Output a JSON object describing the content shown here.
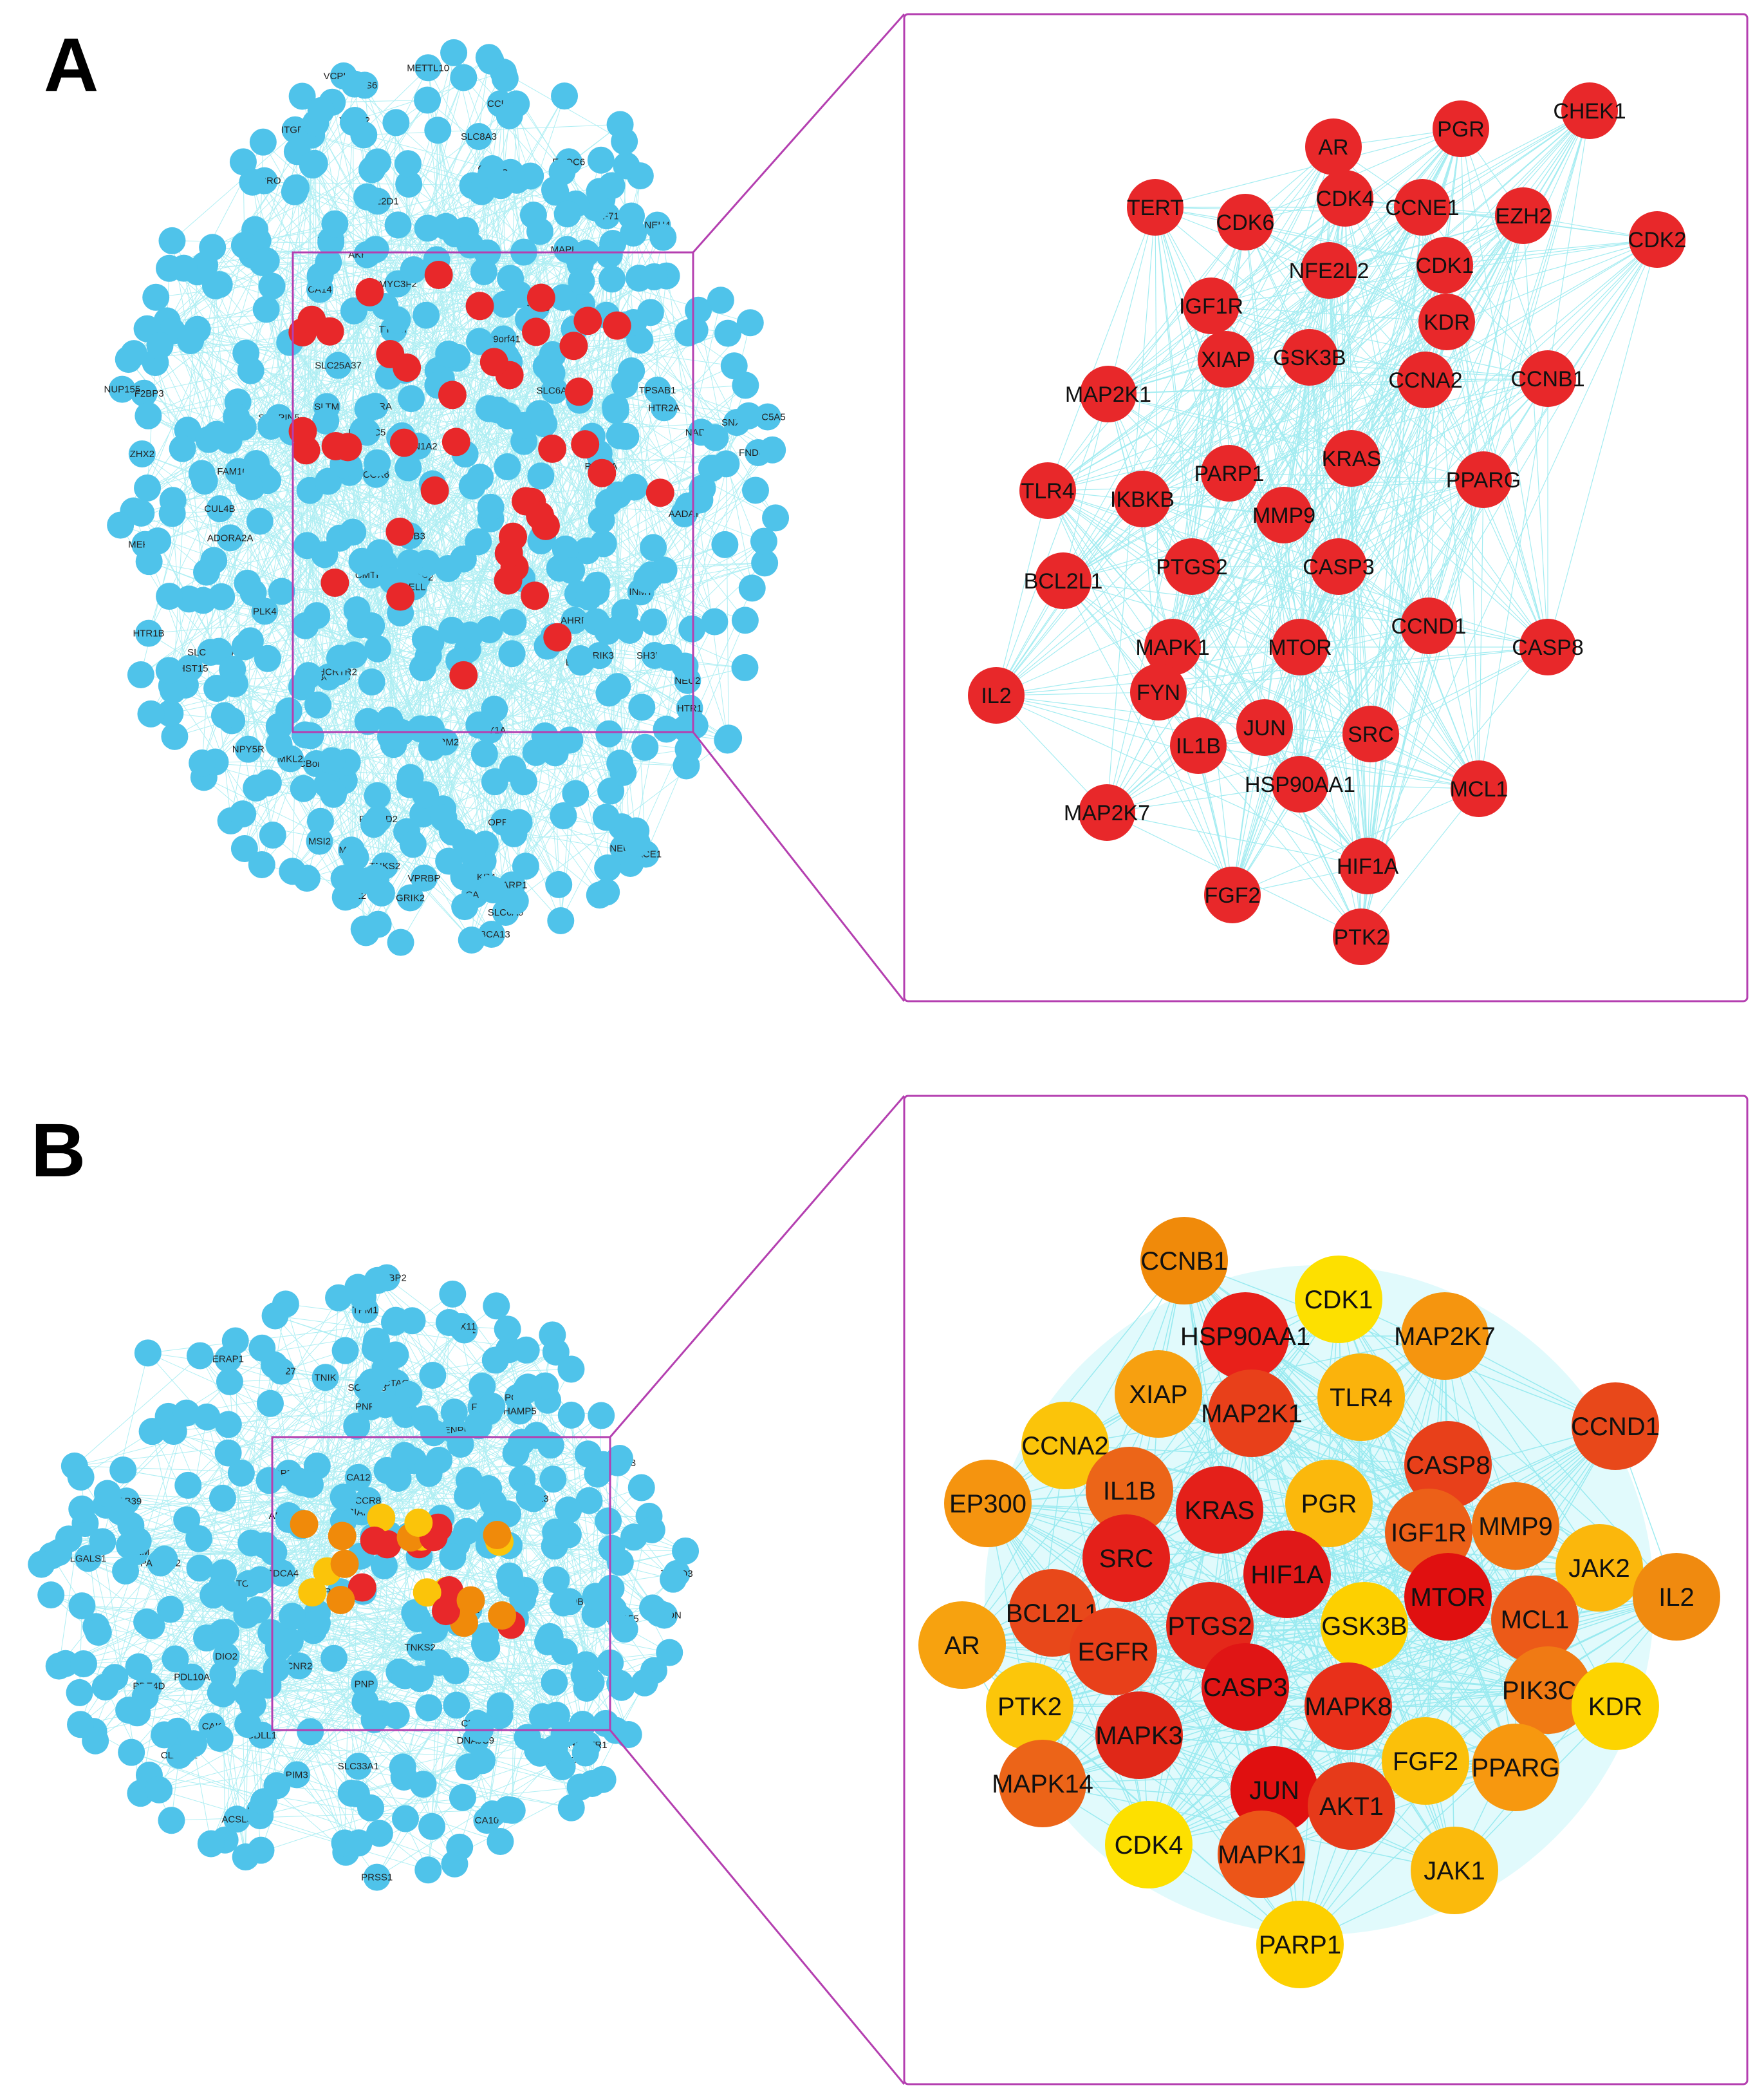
{
  "panels": {
    "a": {
      "letter": "A",
      "zoom_nodes": [
        "AR",
        "PGR",
        "CHEK1",
        "TERT",
        "CDK6",
        "CDK4",
        "CCNE1",
        "EZH2",
        "CDK2",
        "NFE2L2",
        "CDK1",
        "IGF1R",
        "KDR",
        "XIAP",
        "GSK3B",
        "CCNA2",
        "CCNB1",
        "MAP2K1",
        "KRAS",
        "PARP1",
        "PPARG",
        "TLR4",
        "IKBKB",
        "MMP9",
        "BCL2L1",
        "PTGS2",
        "CASP3",
        "CCND1",
        "MAPK1",
        "MTOR",
        "CASP8",
        "IL2",
        "FYN",
        "SRC",
        "JUN",
        "IL1B",
        "HSP90AA1",
        "MCL1",
        "MAP2K7",
        "HIF1A",
        "FGF2",
        "PTK2"
      ],
      "node_color": "#e8282a",
      "network_node_labels": [
        "PARP1",
        "RSBN1",
        "TEFM",
        "IGF2BP3",
        "CMTR2",
        "MAN1A2",
        "INTU",
        "NEU4",
        "YPEL5",
        "SLC6A9",
        "QARS",
        "C9orf41",
        "COX6",
        "TJBGCP3",
        "SNX24",
        "MSI2",
        "VPRBP",
        "HIFX",
        "FCHSD2",
        "POC1A",
        "AKR1C3",
        "ERP27",
        "TTC27",
        "CUL4B",
        "NUP155",
        "ZNF711",
        "EXOC6",
        "ESM1",
        "METTL10",
        "SLTM",
        "AHRR",
        "CBorf40",
        "VCPKMT",
        "TSC22D1",
        "MERTK",
        "SLC8A3",
        "CCR4",
        "TNKS2",
        "PTPRO",
        "GSE1",
        "WWC2",
        "SLC5A5",
        "MAPK4",
        "NADK2",
        "MKL2",
        "SLC25A37",
        "GRIK3",
        "HTR1B",
        "GRIK1",
        "INMT",
        "FNDC3B",
        "ABCA13",
        "HTR1",
        "NPY5R",
        "SERPIN5",
        "OPRL1",
        "FAM107A",
        "SPSB3",
        "SH3D19",
        "CA13",
        "HCRTR2",
        "CHST15",
        "CA8",
        "NEU2",
        "HPS6",
        "AMY1A",
        "CA14",
        "DNAJC5",
        "PLK4",
        "SLC6A4",
        "BACE1",
        "OSBP2",
        "AADAT",
        "CA7",
        "SLC16A14",
        "TPSAB1",
        "EDNRA",
        "MYC3F2",
        "ITGB8",
        "MAL2",
        "ADORA2A",
        "HTR2A",
        "ZHX2",
        "NEUS",
        "SELL",
        "MBNL2",
        "ACKR4",
        "GRIK2",
        "GRM2"
      ]
    },
    "b": {
      "letter": "B",
      "zoom_nodes": [
        {
          "label": "CCNB1",
          "color": "#f08a0a"
        },
        {
          "label": "CDK1",
          "color": "#fde000"
        },
        {
          "label": "HSP90AA1",
          "color": "#e8201a"
        },
        {
          "label": "MAP2K7",
          "color": "#f5950f"
        },
        {
          "label": "XIAP",
          "color": "#f7a010"
        },
        {
          "label": "CCNA2",
          "color": "#fbc40a"
        },
        {
          "label": "MAP2K1",
          "color": "#e8401a"
        },
        {
          "label": "TLR4",
          "color": "#fbb30c"
        },
        {
          "label": "CCND1",
          "color": "#e8481a"
        },
        {
          "label": "IL1B",
          "color": "#ec6518"
        },
        {
          "label": "KRAS",
          "color": "#e4201a"
        },
        {
          "label": "PGR",
          "color": "#fbb80c"
        },
        {
          "label": "CASP8",
          "color": "#e8401a"
        },
        {
          "label": "EP300",
          "color": "#f5940f"
        },
        {
          "label": "IGF1R",
          "color": "#ec6018"
        },
        {
          "label": "MMP9",
          "color": "#f07514"
        },
        {
          "label": "JAK2",
          "color": "#fbb70c"
        },
        {
          "label": "SRC",
          "color": "#e4201a"
        },
        {
          "label": "HIF1A",
          "color": "#e01818"
        },
        {
          "label": "MTOR",
          "color": "#e01010"
        },
        {
          "label": "BCL2L1",
          "color": "#e8481a"
        },
        {
          "label": "PTGS2",
          "color": "#e4281a"
        },
        {
          "label": "GSK3B",
          "color": "#fdd000"
        },
        {
          "label": "MCL1",
          "color": "#ec5a18"
        },
        {
          "label": "IL2",
          "color": "#f08a0f"
        },
        {
          "label": "AR",
          "color": "#f7a20f"
        },
        {
          "label": "EGFR",
          "color": "#e8401a"
        },
        {
          "label": "CASP3",
          "color": "#e01515"
        },
        {
          "label": "PIK3CA",
          "color": "#f07a14"
        },
        {
          "label": "PTK2",
          "color": "#fcc60a"
        },
        {
          "label": "MAPK8",
          "color": "#e8301a"
        },
        {
          "label": "KDR",
          "color": "#fdd400"
        },
        {
          "label": "MAPK3",
          "color": "#e02818"
        },
        {
          "label": "FGF2",
          "color": "#fbc00a"
        },
        {
          "label": "PPARG",
          "color": "#f7980f"
        },
        {
          "label": "MAPK14",
          "color": "#ec6418"
        },
        {
          "label": "JUN",
          "color": "#e01010"
        },
        {
          "label": "AKT1",
          "color": "#e63a1a"
        },
        {
          "label": "CDK4",
          "color": "#fde000"
        },
        {
          "label": "MAPK1",
          "color": "#ec5518"
        },
        {
          "label": "JAK1",
          "color": "#fbba0c"
        },
        {
          "label": "PARP1",
          "color": "#fdd000"
        }
      ],
      "network_node_labels": [
        "TPM1",
        "TYRO3",
        "TTC27",
        "PACSIN2",
        "CDLL1",
        "ACSL3",
        "CNR2",
        "PRSS1",
        "MAOB",
        "POLD",
        "CAK",
        "TOB1",
        "ACSL3",
        "CLASP2",
        "FUS",
        "ERAP1",
        "SIAH1",
        "RMI1",
        "SERPINB1",
        "SLC33A1",
        "GPR29",
        "CZ1",
        "CCR8",
        "NUP155",
        "PLK4",
        "PNP",
        "KNKON",
        "CDCA4",
        "HCRTR1",
        "ADORA3",
        "CTAG",
        "KTN4",
        "CA12",
        "DIO2",
        "ADRB3",
        "LGALS1",
        "NEIL",
        "TNKS2",
        "PNPT1",
        "CDCA4",
        "ADARB1",
        "CA10",
        "PIM3",
        "CAB39",
        "PDL10A",
        "PDE4D",
        "TNIK",
        "SCARA3",
        "MYCBP2",
        "SOX11",
        "RPRM",
        "CENPE",
        "PAQR3",
        "PFKFB3",
        "DNAJC9",
        "HAMP5"
      ]
    }
  }
}
